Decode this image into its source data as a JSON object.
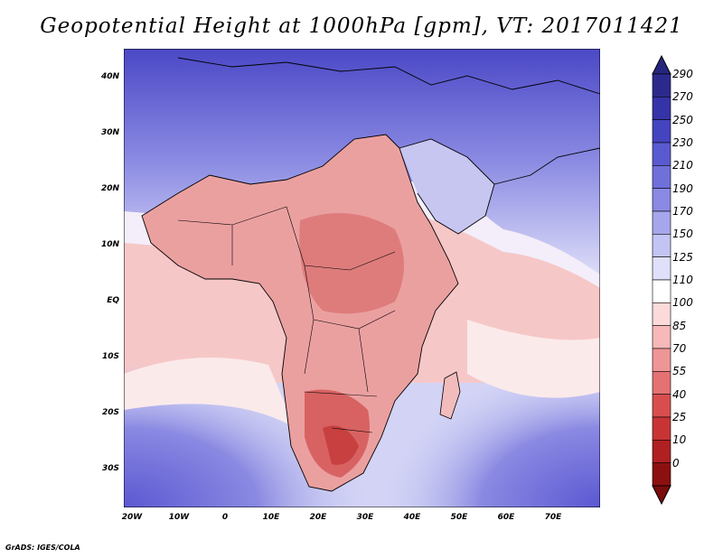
{
  "title": "Geopotential Height at 1000hPa [gpm], VT: 2017011421",
  "footer": "GrADS: IGES/COLA",
  "lat_labels": [
    "40N",
    "30N",
    "20N",
    "10N",
    "EQ",
    "10S",
    "20S",
    "30S"
  ],
  "lon_labels": [
    "20W",
    "10W",
    "0",
    "10E",
    "20E",
    "30E",
    "40E",
    "50E",
    "60E",
    "70E"
  ],
  "colorbar": {
    "levels": [
      "290",
      "270",
      "250",
      "230",
      "210",
      "190",
      "170",
      "150",
      "125",
      "110",
      "100",
      "85",
      "70",
      "55",
      "40",
      "25",
      "10",
      "0"
    ],
    "colors": [
      "#2b2a8c",
      "#3533a8",
      "#4444c0",
      "#5a5ad0",
      "#7070da",
      "#8a8ae4",
      "#a6a6ec",
      "#c4c4f4",
      "#e0e0fa",
      "#ffffff",
      "#fcdada",
      "#f6b8b8",
      "#ee9696",
      "#e47272",
      "#d84e4e",
      "#c83434",
      "#b02020",
      "#8c1010"
    ],
    "top_color": "#262680",
    "bottom_color": "#7a0c0c"
  },
  "palette": {
    "ocean_high": "#c9caf3",
    "ocean_mid": "#f7c4c4",
    "land_low": "#e79a9a",
    "deep_blue": "#4b48c6",
    "coast": "#000000"
  }
}
